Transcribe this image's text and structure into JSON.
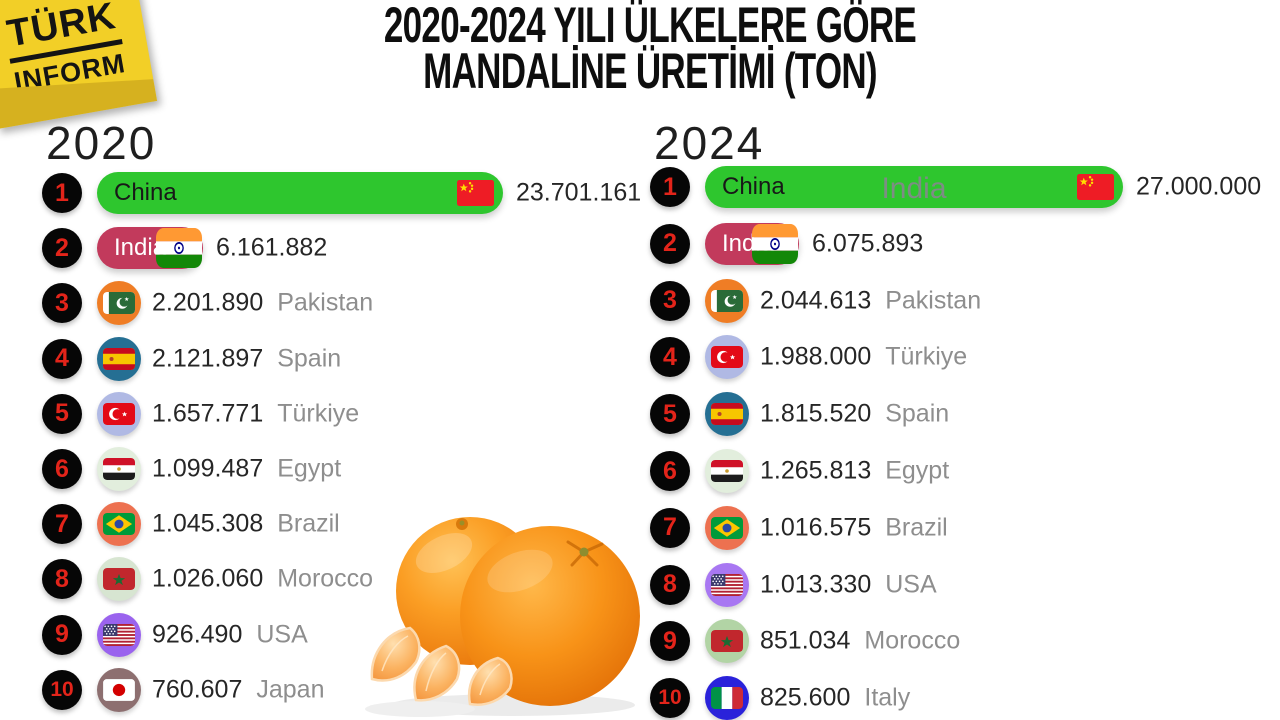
{
  "logo": {
    "line1": "TÜRK",
    "line2": "INFORM"
  },
  "title": {
    "line1": "2020-2024 YILI ÜLKELERE GÖRE",
    "line2": "MANDALİNE ÜRETİMİ (TON)"
  },
  "colors": {
    "rank_number": "#e3241a",
    "bar_green": "#2ec62e",
    "bar_crimson": "#c23a5c",
    "value_text": "#262626",
    "country_text": "#8e8e8e",
    "logo_yellow": "#f2cf27"
  },
  "chart_data": [
    {
      "type": "bar",
      "year": "2020",
      "unit": "TON",
      "entries": [
        {
          "rank": "1",
          "country": "China",
          "value": 23701161,
          "value_label": "23.701.161",
          "flag": "china",
          "color": "#2ec62e",
          "label_color": "#181818"
        },
        {
          "rank": "2",
          "country": "India",
          "value": 6161882,
          "value_label": "6.161.882",
          "flag": "india",
          "color": "#c23a5c",
          "label_color": "#ffffff"
        },
        {
          "rank": "3",
          "country": "Pakistan",
          "value": 2201890,
          "value_label": "2.201.890",
          "flag": "pakistan",
          "color": "#ef7d25"
        },
        {
          "rank": "4",
          "country": "Spain",
          "value": 2121897,
          "value_label": "2.121.897",
          "flag": "spain",
          "color": "#256f93"
        },
        {
          "rank": "5",
          "country": "Türkiye",
          "value": 1657771,
          "value_label": "1.657.771",
          "flag": "turkiye",
          "color": "#b0b9e4"
        },
        {
          "rank": "6",
          "country": "Egypt",
          "value": 1099487,
          "value_label": "1.099.487",
          "flag": "egypt",
          "color": "#e2eedd"
        },
        {
          "rank": "7",
          "country": "Brazil",
          "value": 1045308,
          "value_label": "1.045.308",
          "flag": "brazil",
          "color": "#ed7150"
        },
        {
          "rank": "8",
          "country": "Morocco",
          "value": 1026060,
          "value_label": "1.026.060",
          "flag": "morocco",
          "color": "#d7e5d1"
        },
        {
          "rank": "9",
          "country": "USA",
          "value": 926490,
          "value_label": "926.490",
          "flag": "usa",
          "color": "#9a63ee"
        },
        {
          "rank": "10",
          "country": "Japan",
          "value": 760607,
          "value_label": "760.607",
          "flag": "japan",
          "color": "#8d6f70"
        }
      ]
    },
    {
      "type": "bar",
      "year": "2024",
      "unit": "TON",
      "entries": [
        {
          "rank": "1",
          "country": "China",
          "value": 27000000,
          "value_label": "27.000.000",
          "flag": "china",
          "color": "#2ec62e",
          "label_color": "#181818",
          "ghost": "India"
        },
        {
          "rank": "2",
          "country": "India",
          "value": 6075893,
          "value_label": "6.075.893",
          "flag": "india",
          "color": "#c23a5c",
          "label_color": "#ffffff"
        },
        {
          "rank": "3",
          "country": "Pakistan",
          "value": 2044613,
          "value_label": "2.044.613",
          "flag": "pakistan",
          "color": "#ef7d25"
        },
        {
          "rank": "4",
          "country": "Türkiye",
          "value": 1988000,
          "value_label": "1.988.000",
          "flag": "turkiye",
          "color": "#b0b9e4"
        },
        {
          "rank": "5",
          "country": "Spain",
          "value": 1815520,
          "value_label": "1.815.520",
          "flag": "spain",
          "color": "#256f93"
        },
        {
          "rank": "6",
          "country": "Egypt",
          "value": 1265813,
          "value_label": "1.265.813",
          "flag": "egypt",
          "color": "#e2eedd"
        },
        {
          "rank": "7",
          "country": "Brazil",
          "value": 1016575,
          "value_label": "1.016.575",
          "flag": "brazil",
          "color": "#ed7150"
        },
        {
          "rank": "8",
          "country": "USA",
          "value": 1013330,
          "value_label": "1.013.330",
          "flag": "usa",
          "color": "#a877f2"
        },
        {
          "rank": "9",
          "country": "Morocco",
          "value": 851034,
          "value_label": "851.034",
          "flag": "morocco",
          "color": "#b2d4a5"
        },
        {
          "rank": "10",
          "country": "Italy",
          "value": 825600,
          "value_label": "825.600",
          "flag": "italy",
          "color": "#2a22da"
        }
      ]
    }
  ]
}
